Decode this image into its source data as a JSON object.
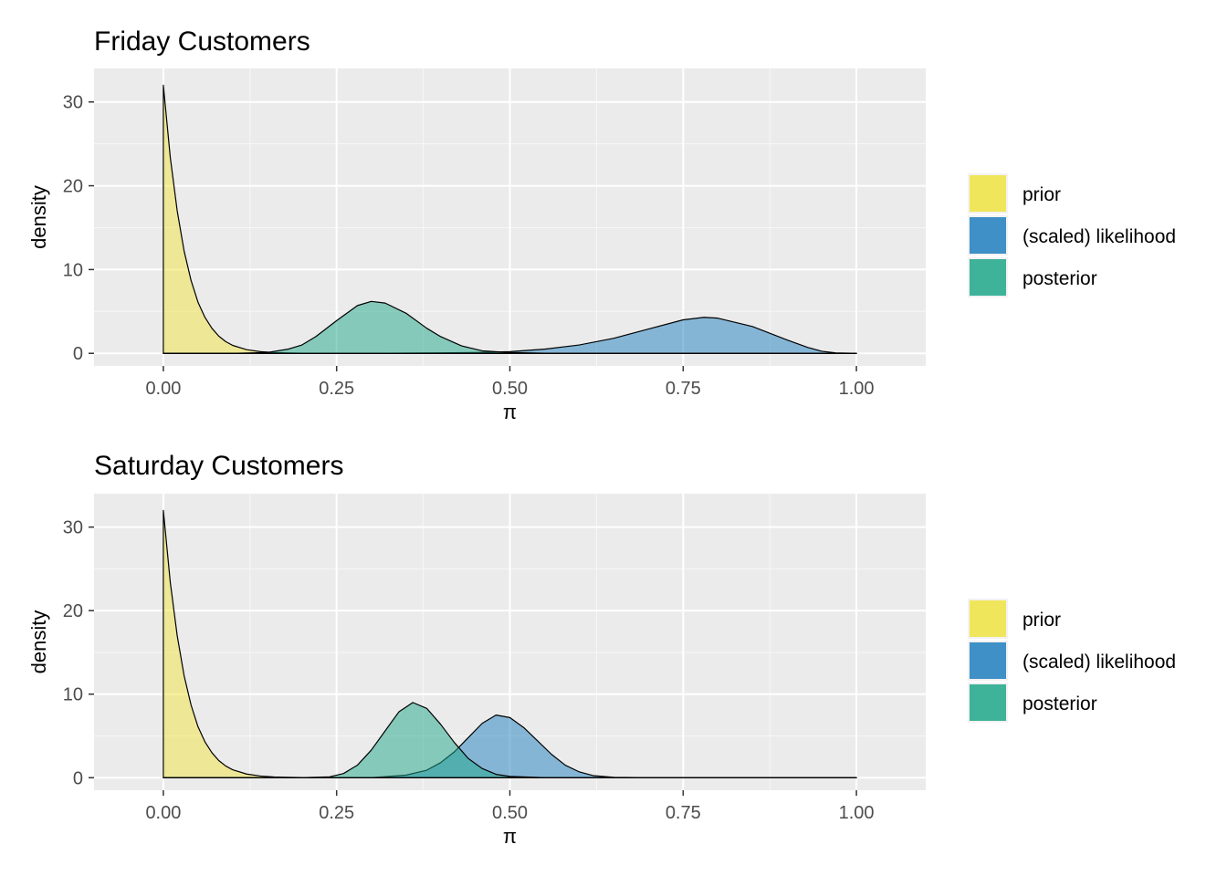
{
  "chart_data": [
    {
      "type": "area",
      "title": "Friday Customers",
      "xlabel": "π",
      "ylabel": "density",
      "xlim": [
        -0.1,
        1.1
      ],
      "ylim": [
        -1.5,
        34
      ],
      "x_ticks": [
        0,
        0.25,
        0.5,
        0.75,
        1
      ],
      "x_tick_labels": [
        "0.00",
        "0.25",
        "0.50",
        "0.75",
        "1.00"
      ],
      "y_ticks": [
        0,
        10,
        20,
        30
      ],
      "y_tick_labels": [
        "0",
        "10",
        "20",
        "30"
      ],
      "grid": true,
      "legend_position": "right",
      "series": [
        {
          "name": "prior",
          "color": "#f0e442",
          "x": [
            0,
            0.01,
            0.02,
            0.03,
            0.04,
            0.05,
            0.06,
            0.07,
            0.08,
            0.09,
            0.1,
            0.12,
            0.14,
            0.16,
            0.18,
            0.2,
            0.25,
            0.3,
            0.4,
            0.5,
            0.75,
            1.0
          ],
          "y": [
            32,
            23.4,
            17.0,
            12.2,
            8.7,
            6.1,
            4.3,
            3.0,
            2.05,
            1.4,
            0.95,
            0.44,
            0.2,
            0.09,
            0.04,
            0.02,
            0,
            0,
            0,
            0,
            0,
            0
          ]
        },
        {
          "name": "(scaled) likelihood",
          "color": "#1f7fbf",
          "x": [
            0,
            0.1,
            0.2,
            0.3,
            0.4,
            0.45,
            0.5,
            0.55,
            0.6,
            0.65,
            0.7,
            0.75,
            0.78,
            0.8,
            0.85,
            0.9,
            0.93,
            0.95,
            0.97,
            1.0
          ],
          "y": [
            0,
            0,
            0,
            0,
            0.05,
            0.1,
            0.2,
            0.5,
            1.0,
            1.8,
            2.9,
            4.0,
            4.3,
            4.2,
            3.2,
            1.6,
            0.7,
            0.25,
            0.05,
            0
          ]
        },
        {
          "name": "posterior",
          "color": "#1fa88a",
          "x": [
            0,
            0.1,
            0.15,
            0.18,
            0.2,
            0.22,
            0.25,
            0.28,
            0.3,
            0.32,
            0.35,
            0.38,
            0.4,
            0.43,
            0.46,
            0.5,
            0.55,
            0.6,
            1.0
          ],
          "y": [
            0,
            0,
            0.1,
            0.5,
            1.0,
            2.0,
            3.9,
            5.7,
            6.2,
            6.0,
            4.8,
            3.0,
            2.0,
            0.9,
            0.3,
            0.1,
            0.02,
            0,
            0
          ]
        }
      ]
    },
    {
      "type": "area",
      "title": "Saturday Customers",
      "xlabel": "π",
      "ylabel": "density",
      "xlim": [
        -0.1,
        1.1
      ],
      "ylim": [
        -1.5,
        34
      ],
      "x_ticks": [
        0,
        0.25,
        0.5,
        0.75,
        1
      ],
      "x_tick_labels": [
        "0.00",
        "0.25",
        "0.50",
        "0.75",
        "1.00"
      ],
      "y_ticks": [
        0,
        10,
        20,
        30
      ],
      "y_tick_labels": [
        "0",
        "10",
        "20",
        "30"
      ],
      "grid": true,
      "legend_position": "right",
      "series": [
        {
          "name": "prior",
          "color": "#f0e442",
          "x": [
            0,
            0.01,
            0.02,
            0.03,
            0.04,
            0.05,
            0.06,
            0.07,
            0.08,
            0.09,
            0.1,
            0.12,
            0.14,
            0.16,
            0.18,
            0.2,
            0.25,
            0.3,
            0.4,
            0.5,
            0.75,
            1.0
          ],
          "y": [
            32,
            23.4,
            17.0,
            12.2,
            8.7,
            6.1,
            4.3,
            3.0,
            2.05,
            1.4,
            0.95,
            0.44,
            0.2,
            0.09,
            0.04,
            0.02,
            0,
            0,
            0,
            0,
            0,
            0
          ]
        },
        {
          "name": "(scaled) likelihood",
          "color": "#1f7fbf",
          "x": [
            0,
            0.3,
            0.35,
            0.38,
            0.4,
            0.42,
            0.44,
            0.46,
            0.48,
            0.5,
            0.52,
            0.54,
            0.56,
            0.58,
            0.6,
            0.62,
            0.65,
            0.7,
            1.0
          ],
          "y": [
            0,
            0,
            0.3,
            0.9,
            1.8,
            3.1,
            4.8,
            6.5,
            7.5,
            7.2,
            6.0,
            4.4,
            2.8,
            1.5,
            0.7,
            0.25,
            0.05,
            0,
            0
          ]
        },
        {
          "name": "posterior",
          "color": "#1fa88a",
          "x": [
            0,
            0.2,
            0.24,
            0.26,
            0.28,
            0.3,
            0.32,
            0.34,
            0.36,
            0.38,
            0.4,
            0.42,
            0.44,
            0.46,
            0.48,
            0.5,
            0.55,
            1.0
          ],
          "y": [
            0,
            0,
            0.1,
            0.5,
            1.5,
            3.3,
            5.6,
            7.9,
            9.0,
            8.3,
            6.4,
            4.2,
            2.3,
            1.1,
            0.4,
            0.15,
            0,
            0
          ]
        }
      ]
    }
  ]
}
